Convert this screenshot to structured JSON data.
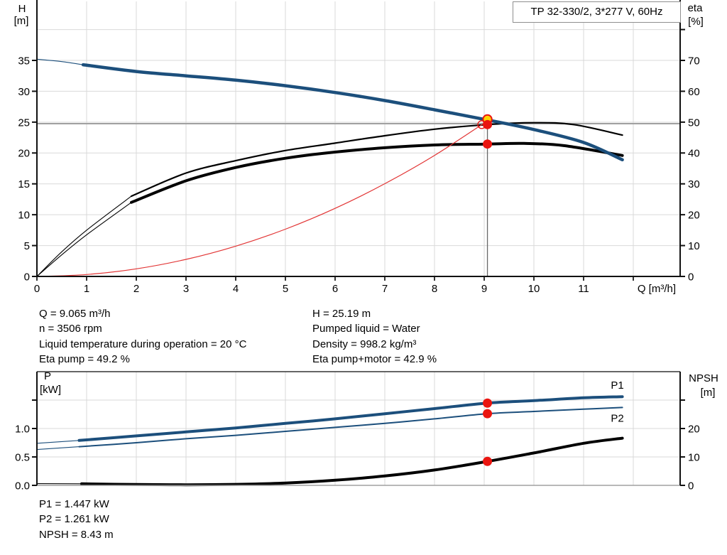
{
  "title_box": "TP 32-330/2, 3*277 V, 60Hz",
  "colors": {
    "curve_blue": "#1c4f7c",
    "curve_black": "#000000",
    "curve_red": "#e23535",
    "dot_red": "#ea1510",
    "dot_yellow": "#ffd200",
    "grid": "#d9d9d9",
    "axis": "#111111",
    "axis_light": "#a0a0a0",
    "duty_hline": "#a0a0a0",
    "duty_vline": "#686868",
    "blue_label": "#2457a0",
    "box_border": "#8f8f8f"
  },
  "info_block": {
    "left": [
      "Q = 9.065 m³/h",
      "n = 3506 rpm",
      "Liquid temperature during operation = 20 °C",
      "Eta pump = 49.2 %"
    ],
    "right": [
      "H = 25.19 m",
      "Pumped liquid = Water",
      "Density = 998.2 kg/m³",
      "Eta pump+motor = 42.9 %"
    ]
  },
  "result_block": [
    "P1 = 1.447 kW",
    "P2 = 1.261 kW",
    "NPSH = 8.43 m"
  ],
  "chart_data": [
    {
      "type": "line",
      "id": "qh-eta",
      "title": "TP 32-330/2, 3*277 V, 60Hz",
      "x_axis": {
        "label": "Q [m³/h]",
        "ticks": [
          0,
          1,
          2,
          3,
          4,
          5,
          6,
          7,
          8,
          9,
          10,
          11
        ],
        "tick_marks": [
          0,
          1,
          2,
          3,
          4,
          5,
          6,
          7,
          8,
          9,
          10,
          11,
          12
        ],
        "range": [
          0,
          12.94
        ],
        "grid": [
          1,
          2,
          3,
          4,
          5,
          6,
          7,
          8,
          9,
          10,
          11,
          12
        ]
      },
      "left_axis": {
        "title": "H",
        "unit": "[m]",
        "ticks": [
          0,
          5,
          10,
          15,
          20,
          25,
          30,
          35
        ],
        "extra_ticks": [],
        "grid": [
          5,
          10,
          15,
          20,
          25,
          30,
          35,
          40
        ],
        "range": [
          0,
          44.8
        ],
        "label_color": "black"
      },
      "right_axis": {
        "title": "eta",
        "unit": "[%]",
        "ticks": [
          0,
          10,
          20,
          30,
          40,
          50,
          60,
          70
        ],
        "extra_ticks": [
          80
        ],
        "range": [
          0,
          89.6
        ],
        "label_color": "black"
      },
      "duty_point": {
        "q_m3h": 9.065,
        "h_m": 25.19,
        "eta_pump_pct": 49.2,
        "eta_pump_motor_pct": 42.9
      },
      "duty_lines": {
        "h_value": 24.75,
        "q_value": 9.065
      },
      "series": [
        {
          "name": "eta-pump",
          "axis": "right",
          "color_key": "curve_black",
          "width": 2.2,
          "lead_until": 1.9,
          "points": [
            [
              0,
              0
            ],
            [
              0.5,
              8
            ],
            [
              1,
              15
            ],
            [
              1.9,
              26
            ],
            [
              3,
              33.5
            ],
            [
              4,
              37.5
            ],
            [
              5,
              40.8
            ],
            [
              6,
              43.2
            ],
            [
              7,
              45.6
            ],
            [
              8,
              47.7
            ],
            [
              9.065,
              49.2
            ],
            [
              10,
              49.8
            ],
            [
              10.8,
              49.2
            ],
            [
              11.78,
              45.8
            ]
          ]
        },
        {
          "name": "eta-pump-motor",
          "axis": "right",
          "color_key": "curve_black",
          "width": 4,
          "lead_until": 1.9,
          "points": [
            [
              0,
              0
            ],
            [
              0.5,
              7
            ],
            [
              1,
              13.5
            ],
            [
              1.9,
              24
            ],
            [
              3,
              31
            ],
            [
              4,
              35.3
            ],
            [
              5,
              38.3
            ],
            [
              6,
              40.3
            ],
            [
              7,
              41.7
            ],
            [
              8,
              42.6
            ],
            [
              9.065,
              42.9
            ],
            [
              9.8,
              43.1
            ],
            [
              10.6,
              42.4
            ],
            [
              11.78,
              39.2
            ]
          ]
        },
        {
          "name": "system-curve",
          "axis": "left",
          "color_key": "curve_red",
          "width": 1.2,
          "points": [
            [
              0,
              0
            ],
            [
              1,
              0.31
            ],
            [
              2,
              1.23
            ],
            [
              3,
              2.76
            ],
            [
              4,
              4.9
            ],
            [
              5,
              7.66
            ],
            [
              6,
              11.03
            ],
            [
              7,
              15.02
            ],
            [
              8,
              19.61
            ],
            [
              9.065,
              25.19
            ]
          ]
        },
        {
          "name": "head",
          "axis": "left",
          "color_key": "curve_blue",
          "width": 4.5,
          "lead_until": 0.93,
          "points": [
            [
              0,
              35.2
            ],
            [
              0.5,
              34.8
            ],
            [
              0.93,
              34.3
            ],
            [
              2,
              33.2
            ],
            [
              3,
              32.5
            ],
            [
              4,
              31.8
            ],
            [
              5,
              30.9
            ],
            [
              6,
              29.8
            ],
            [
              7,
              28.5
            ],
            [
              8,
              27.0
            ],
            [
              9.065,
              25.35
            ],
            [
              10,
              23.8
            ],
            [
              11,
              21.7
            ],
            [
              11.78,
              18.9
            ]
          ]
        }
      ],
      "markers": [
        {
          "q": 8.95,
          "v": 24.6,
          "axis": "left",
          "style": "ring"
        },
        {
          "q": 9.065,
          "v": 25.45,
          "axis": "left",
          "style": "yellow"
        },
        {
          "q": 9.065,
          "v": 49.2,
          "axis": "right",
          "style": "red"
        },
        {
          "q": 9.065,
          "v": 42.9,
          "axis": "right",
          "style": "red"
        }
      ]
    },
    {
      "type": "line",
      "id": "p-npsh",
      "x_axis": {
        "label": "",
        "ticks": [],
        "tick_marks": [],
        "range": [
          0,
          12.94
        ],
        "grid": [
          1,
          2,
          3,
          4,
          5,
          6,
          7,
          8,
          9,
          10,
          11,
          12
        ]
      },
      "left_axis": {
        "title": "P",
        "unit": "[kW]",
        "ticks": [
          0,
          0.5,
          1.0
        ],
        "tick_labels": [
          "0.0",
          "0.5",
          "1.0"
        ],
        "extra_ticks": [
          1.5
        ],
        "grid": [
          0.5,
          1.0,
          1.5
        ],
        "range": [
          0,
          2.0
        ],
        "label_color": "blue"
      },
      "right_axis": {
        "title": "NPSH",
        "unit": "[m]",
        "ticks": [
          0,
          10,
          20
        ],
        "extra_ticks": [
          30
        ],
        "range": [
          0,
          40
        ],
        "label_color": "blue"
      },
      "duty_point": {
        "p1_kw": 1.447,
        "p2_kw": 1.261,
        "npsh_m": 8.43
      },
      "series": [
        {
          "name": "npsh",
          "axis": "right",
          "color_key": "curve_black",
          "width": 4,
          "lead_until": 0.9,
          "points": [
            [
              0,
              0.6
            ],
            [
              0.9,
              0.55
            ],
            [
              2,
              0.3
            ],
            [
              3,
              0.2
            ],
            [
              4,
              0.35
            ],
            [
              5,
              0.8
            ],
            [
              6,
              1.8
            ],
            [
              7,
              3.3
            ],
            [
              8,
              5.4
            ],
            [
              9.065,
              8.43
            ],
            [
              10,
              11.4
            ],
            [
              11,
              14.8
            ],
            [
              11.78,
              16.6
            ]
          ]
        },
        {
          "name": "p2",
          "axis": "left",
          "color_key": "curve_blue",
          "width": 2,
          "lead_until": 0.85,
          "label": "P2",
          "label_side": "below",
          "points": [
            [
              0,
              0.63
            ],
            [
              0.85,
              0.68
            ],
            [
              2,
              0.75
            ],
            [
              3,
              0.82
            ],
            [
              4,
              0.88
            ],
            [
              5,
              0.95
            ],
            [
              6,
              1.02
            ],
            [
              7,
              1.09
            ],
            [
              8,
              1.17
            ],
            [
              9.065,
              1.261
            ],
            [
              10,
              1.3
            ],
            [
              11,
              1.34
            ],
            [
              11.78,
              1.37
            ]
          ]
        },
        {
          "name": "p1",
          "axis": "left",
          "color_key": "curve_blue",
          "width": 4,
          "lead_until": 0.85,
          "label": "P1",
          "label_side": "above",
          "points": [
            [
              0,
              0.74
            ],
            [
              0.85,
              0.79
            ],
            [
              2,
              0.87
            ],
            [
              3,
              0.94
            ],
            [
              4,
              1.01
            ],
            [
              5,
              1.09
            ],
            [
              6,
              1.17
            ],
            [
              7,
              1.26
            ],
            [
              8,
              1.35
            ],
            [
              9.065,
              1.447
            ],
            [
              10,
              1.49
            ],
            [
              11,
              1.54
            ],
            [
              11.78,
              1.56
            ]
          ]
        }
      ],
      "markers": [
        {
          "q": 9.065,
          "v": 1.447,
          "axis": "left",
          "style": "red"
        },
        {
          "q": 9.065,
          "v": 1.261,
          "axis": "left",
          "style": "red"
        },
        {
          "q": 9.065,
          "v": 8.43,
          "axis": "right",
          "style": "red"
        }
      ]
    }
  ]
}
